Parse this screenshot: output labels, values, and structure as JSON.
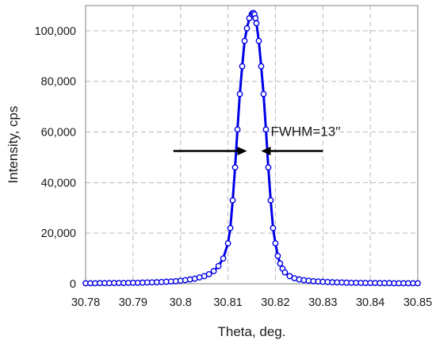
{
  "chart_data": {
    "type": "line",
    "title": "",
    "xlabel": "Theta, deg.",
    "ylabel": "Intensity, cps",
    "xlim": [
      30.78,
      30.85
    ],
    "ylim": [
      0,
      110000
    ],
    "x_ticks": [
      30.78,
      30.79,
      30.8,
      30.81,
      30.82,
      30.83,
      30.84,
      30.85
    ],
    "x_tick_labels": [
      "30.78",
      "30.79",
      "30.8",
      "30.81",
      "30.82",
      "30.83",
      "30.84",
      "30.85"
    ],
    "y_ticks": [
      0,
      20000,
      40000,
      60000,
      80000,
      100000
    ],
    "y_tick_labels": [
      "0",
      "20,000",
      "40,000",
      "60,000",
      "80,000",
      "100,000"
    ],
    "grid": true,
    "legend": "none",
    "series": [
      {
        "color": "#0000e6",
        "marker": "open-circle",
        "x": [
          30.78,
          30.781,
          30.782,
          30.783,
          30.784,
          30.785,
          30.786,
          30.787,
          30.788,
          30.789,
          30.79,
          30.791,
          30.792,
          30.793,
          30.794,
          30.795,
          30.796,
          30.797,
          30.798,
          30.799,
          30.8,
          30.801,
          30.802,
          30.803,
          30.804,
          30.805,
          30.806,
          30.807,
          30.808,
          30.809,
          30.81,
          30.8105,
          30.811,
          30.8115,
          30.812,
          30.8125,
          30.813,
          30.8135,
          30.814,
          30.8145,
          30.815,
          30.8152,
          30.8154,
          30.8156,
          30.8158,
          30.816,
          30.8165,
          30.817,
          30.8175,
          30.818,
          30.8185,
          30.819,
          30.8195,
          30.82,
          30.8205,
          30.821,
          30.8215,
          30.822,
          30.823,
          30.824,
          30.825,
          30.826,
          30.827,
          30.828,
          30.829,
          30.83,
          30.831,
          30.832,
          30.833,
          30.834,
          30.835,
          30.836,
          30.837,
          30.838,
          30.839,
          30.84,
          30.841,
          30.842,
          30.843,
          30.844,
          30.845,
          30.846,
          30.847,
          30.848,
          30.849,
          30.85
        ],
        "y": [
          200,
          200,
          200,
          250,
          250,
          250,
          300,
          300,
          300,
          350,
          400,
          400,
          450,
          500,
          550,
          600,
          700,
          800,
          900,
          1000,
          1200,
          1400,
          1700,
          2000,
          2500,
          3000,
          3800,
          5000,
          7000,
          10000,
          16000,
          22000,
          33000,
          46000,
          61000,
          75000,
          86000,
          96000,
          101000,
          105000,
          106500,
          107000,
          107000,
          106500,
          105000,
          103000,
          96000,
          86000,
          75000,
          61000,
          46000,
          33000,
          22000,
          16000,
          11000,
          8000,
          6000,
          4500,
          3000,
          2200,
          1700,
          1400,
          1200,
          1000,
          900,
          800,
          700,
          600,
          550,
          500,
          450,
          400,
          400,
          350,
          300,
          300,
          300,
          250,
          250,
          250,
          200,
          200,
          200,
          200,
          200,
          200
        ]
      }
    ],
    "annotations": [
      {
        "text": "FWHM=13′′",
        "arrows": [
          {
            "from_x": 30.7985,
            "to_x": 30.814,
            "y": 52500
          },
          {
            "from_x": 30.83,
            "to_x": 30.817,
            "y": 52500
          }
        ]
      }
    ]
  }
}
